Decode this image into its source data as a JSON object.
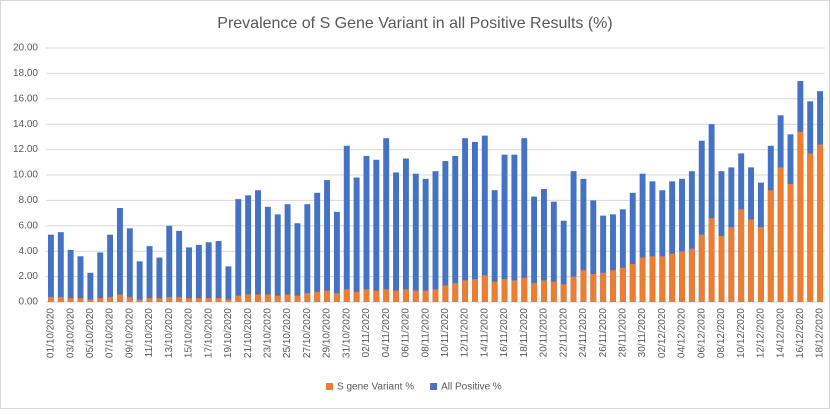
{
  "chart_data": {
    "type": "bar",
    "title": "Prevalence of S Gene Variant in all Positive Results (%)",
    "categories": [
      "01/10/2020",
      null,
      "03/10/2020",
      null,
      "05/10/2020",
      null,
      "07/10/2020",
      null,
      "09/10/2020",
      null,
      "11/10/2020",
      null,
      "13/10/2020",
      null,
      "15/10/2020",
      null,
      "17/10/2020",
      null,
      "19/10/2020",
      null,
      "21/10/2020",
      null,
      "23/10/2020",
      null,
      "25/10/2020",
      null,
      "27/10/2020",
      null,
      "29/10/2020",
      null,
      "31/10/2020",
      null,
      "02/11/2020",
      null,
      "04/11/2020",
      null,
      "06/11/2020",
      null,
      "08/11/2020",
      null,
      "10/11/2020",
      null,
      "12/11/2020",
      null,
      "14/11/2020",
      null,
      "16/11/2020",
      null,
      "18/11/2020",
      null,
      "20/11/2020",
      null,
      "22/11/2020",
      null,
      "24/11/2020",
      null,
      "26/11/2020",
      null,
      "28/11/2020",
      null,
      "30/11/2020",
      null,
      "02/12/2020",
      null,
      "04/12/2020",
      null,
      "06/12/2020",
      null,
      "08/12/2020",
      null,
      "10/12/2020",
      null,
      "12/12/2020",
      null,
      "14/12/2020",
      null,
      "16/12/2020",
      null,
      "18/12/2020"
    ],
    "series": [
      {
        "name": "S gene Variant %",
        "color": "#ed7d31",
        "values": [
          0.4,
          0.4,
          0.3,
          0.3,
          0.2,
          0.3,
          0.4,
          0.6,
          0.4,
          0.2,
          0.3,
          0.3,
          0.4,
          0.4,
          0.3,
          0.3,
          0.3,
          0.3,
          0.2,
          0.5,
          0.6,
          0.6,
          0.6,
          0.5,
          0.6,
          0.5,
          0.7,
          0.8,
          0.9,
          0.7,
          1.0,
          0.8,
          1.0,
          0.9,
          1.0,
          0.9,
          1.0,
          0.9,
          0.9,
          1.0,
          1.3,
          1.5,
          1.7,
          1.8,
          2.1,
          1.6,
          1.8,
          1.7,
          1.9,
          1.5,
          1.7,
          1.6,
          1.4,
          2.0,
          2.5,
          2.2,
          2.3,
          2.5,
          2.7,
          3.0,
          3.5,
          3.6,
          3.6,
          3.8,
          4.0,
          4.2,
          5.3,
          6.6,
          5.2,
          5.9,
          7.3,
          6.5,
          5.9,
          8.8,
          10.6,
          9.3,
          13.4,
          11.7,
          12.4
        ]
      },
      {
        "name": "All Positive %",
        "color": "#4472c4",
        "values": [
          5.3,
          5.5,
          4.1,
          3.6,
          2.3,
          3.9,
          5.3,
          7.4,
          5.8,
          3.2,
          4.4,
          3.5,
          6.0,
          5.6,
          4.3,
          4.5,
          4.7,
          4.8,
          2.8,
          8.1,
          8.4,
          8.8,
          7.5,
          6.9,
          7.7,
          6.2,
          7.7,
          8.6,
          9.6,
          7.1,
          12.3,
          9.8,
          11.5,
          11.2,
          12.9,
          10.2,
          11.3,
          10.1,
          9.7,
          10.3,
          11.1,
          11.5,
          12.9,
          12.6,
          13.1,
          8.8,
          11.6,
          11.6,
          12.9,
          8.3,
          8.9,
          7.9,
          6.4,
          10.3,
          9.7,
          8.0,
          6.8,
          6.9,
          7.3,
          8.6,
          10.1,
          9.5,
          8.8,
          9.5,
          9.7,
          10.3,
          12.7,
          14.0,
          10.3,
          10.6,
          11.7,
          10.6,
          9.4,
          12.3,
          14.7,
          13.2,
          17.4,
          15.8,
          16.6
        ]
      }
    ],
    "ylim": [
      0,
      20
    ],
    "yticks": [
      {
        "value": 0,
        "label": "0.00"
      },
      {
        "value": 2,
        "label": "2.00"
      },
      {
        "value": 4,
        "label": "4.00"
      },
      {
        "value": 6,
        "label": "6.00"
      },
      {
        "value": 8,
        "label": "8.00"
      },
      {
        "value": 10,
        "label": "10.00"
      },
      {
        "value": 12,
        "label": "12.00"
      },
      {
        "value": 14,
        "label": "14.00"
      },
      {
        "value": 16,
        "label": "16.00"
      },
      {
        "value": 18,
        "label": "18.00"
      },
      {
        "value": 20,
        "label": "20.00"
      }
    ],
    "grid": true
  }
}
